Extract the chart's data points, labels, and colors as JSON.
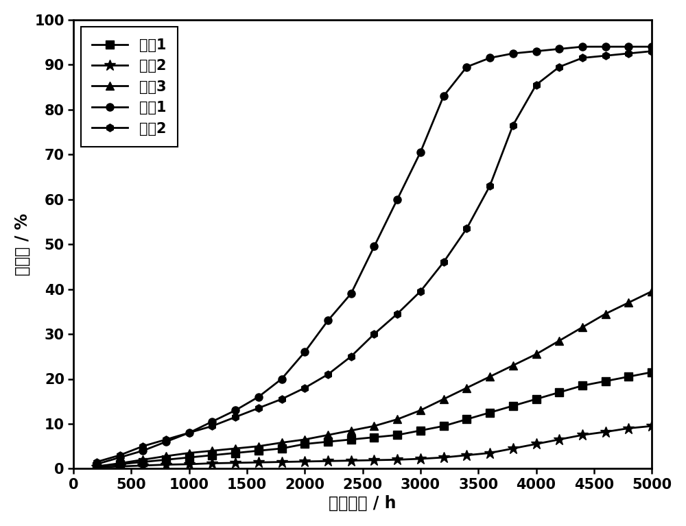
{
  "title": "",
  "xlabel": "老化时间 / h",
  "ylabel": "失光率 / %",
  "xlim": [
    0,
    5000
  ],
  "ylim": [
    0,
    100
  ],
  "xticks": [
    0,
    500,
    1000,
    1500,
    2000,
    2500,
    3000,
    3500,
    4000,
    4500,
    5000
  ],
  "yticks": [
    0,
    10,
    20,
    30,
    40,
    50,
    60,
    70,
    80,
    90,
    100
  ],
  "series": [
    {
      "label": "实例1",
      "marker": "s",
      "x": [
        200,
        400,
        600,
        800,
        1000,
        1200,
        1400,
        1600,
        1800,
        2000,
        2200,
        2400,
        2600,
        2800,
        3000,
        3200,
        3400,
        3600,
        3800,
        4000,
        4200,
        4400,
        4600,
        4800,
        5000
      ],
      "y": [
        0.5,
        1.0,
        1.5,
        2.0,
        2.5,
        3.0,
        3.5,
        4.0,
        4.5,
        5.5,
        6.0,
        6.5,
        7.0,
        7.5,
        8.5,
        9.5,
        11.0,
        12.5,
        14.0,
        15.5,
        17.0,
        18.5,
        19.5,
        20.5,
        21.5
      ]
    },
    {
      "label": "实例2",
      "marker": "*",
      "x": [
        200,
        400,
        600,
        800,
        1000,
        1200,
        1400,
        1600,
        1800,
        2000,
        2200,
        2400,
        2600,
        2800,
        3000,
        3200,
        3400,
        3600,
        3800,
        4000,
        4200,
        4400,
        4600,
        4800,
        5000
      ],
      "y": [
        0.3,
        0.5,
        0.7,
        0.9,
        1.0,
        1.2,
        1.3,
        1.4,
        1.5,
        1.6,
        1.7,
        1.8,
        1.9,
        2.0,
        2.2,
        2.5,
        3.0,
        3.5,
        4.5,
        5.5,
        6.5,
        7.5,
        8.2,
        9.0,
        9.5
      ]
    },
    {
      "label": "实例3",
      "marker": "^",
      "x": [
        200,
        400,
        600,
        800,
        1000,
        1200,
        1400,
        1600,
        1800,
        2000,
        2200,
        2400,
        2600,
        2800,
        3000,
        3200,
        3400,
        3600,
        3800,
        4000,
        4200,
        4400,
        4600,
        4800,
        5000
      ],
      "y": [
        0.5,
        1.2,
        2.0,
        2.8,
        3.5,
        4.0,
        4.5,
        5.0,
        5.8,
        6.5,
        7.5,
        8.5,
        9.5,
        11.0,
        13.0,
        15.5,
        18.0,
        20.5,
        23.0,
        25.5,
        28.5,
        31.5,
        34.5,
        37.0,
        39.5
      ]
    },
    {
      "label": "对比1",
      "marker": "o",
      "x": [
        200,
        400,
        600,
        800,
        1000,
        1200,
        1400,
        1600,
        1800,
        2000,
        2200,
        2400,
        2600,
        2800,
        3000,
        3200,
        3400,
        3600,
        3800,
        4000,
        4200,
        4400,
        4600,
        4800,
        5000
      ],
      "y": [
        1.0,
        2.5,
        4.0,
        6.0,
        8.0,
        10.5,
        13.0,
        16.0,
        20.0,
        26.0,
        33.0,
        39.0,
        49.5,
        60.0,
        70.5,
        83.0,
        89.5,
        91.5,
        92.5,
        93.0,
        93.5,
        94.0,
        94.0,
        94.0,
        94.0
      ]
    },
    {
      "label": "对比2",
      "marker": "h",
      "x": [
        200,
        400,
        600,
        800,
        1000,
        1200,
        1400,
        1600,
        1800,
        2000,
        2200,
        2400,
        2600,
        2800,
        3000,
        3200,
        3400,
        3600,
        3800,
        4000,
        4200,
        4400,
        4600,
        4800,
        5000
      ],
      "y": [
        1.5,
        3.0,
        5.0,
        6.5,
        8.0,
        9.5,
        11.5,
        13.5,
        15.5,
        18.0,
        21.0,
        25.0,
        30.0,
        34.5,
        39.5,
        46.0,
        53.5,
        63.0,
        76.5,
        85.5,
        89.5,
        91.5,
        92.0,
        92.5,
        93.0
      ]
    }
  ],
  "line_color": "#000000",
  "line_width": 2.0,
  "marker_size": 8,
  "legend_fontsize": 15,
  "axis_fontsize": 17,
  "tick_fontsize": 15
}
